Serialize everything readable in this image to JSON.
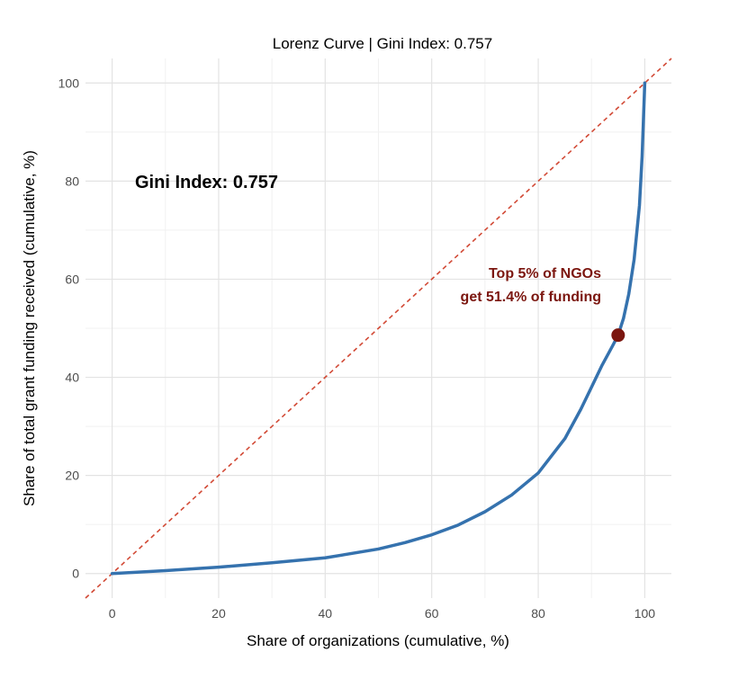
{
  "colors": {
    "curve": "#3572ae",
    "equality_line": "#d24a36",
    "highlight_point": "#7b160f",
    "annotation": "#7b160f",
    "grid_major": "#e3e3e3",
    "grid_minor": "#f1f1f1"
  },
  "chart_data": {
    "type": "line",
    "title": "Lorenz Curve | Gini Index: 0.757",
    "xlabel": "Share of organizations (cumulative, %)",
    "ylabel": "Share of total grant funding received (cumulative, %)",
    "xlim": [
      -5,
      105
    ],
    "ylim": [
      -5,
      105
    ],
    "x_ticks": [
      0,
      20,
      40,
      60,
      80,
      100
    ],
    "y_ticks": [
      0,
      20,
      40,
      60,
      80,
      100
    ],
    "grid": true,
    "equality_line": {
      "style": "dashed",
      "from": [
        -5,
        -5
      ],
      "to": [
        105,
        105
      ]
    },
    "lorenz_curve": {
      "x": [
        0,
        10,
        20,
        30,
        40,
        50,
        55,
        60,
        65,
        70,
        75,
        80,
        85,
        88,
        90,
        92,
        94,
        95,
        96,
        97,
        98,
        99,
        99.5,
        100
      ],
      "y": [
        0,
        0.6,
        1.3,
        2.2,
        3.2,
        5.0,
        6.3,
        7.9,
        9.9,
        12.6,
        16.0,
        20.5,
        27.5,
        33.5,
        38.0,
        42.5,
        46.5,
        48.6,
        52.0,
        57.0,
        64.0,
        75.0,
        85.0,
        100
      ]
    },
    "highlight": {
      "x": 95,
      "y": 48.6
    },
    "annotations": {
      "gini": "Gini Index: 0.757",
      "top_line1": "Top 5% of NGOs",
      "top_line2": "get 51.4% of funding"
    }
  }
}
